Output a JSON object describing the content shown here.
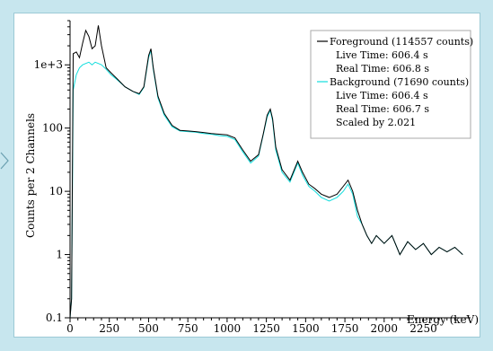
{
  "chart_data": {
    "type": "line",
    "xlabel": "Energy (keV)",
    "ylabel": "Counts per 2 Channels",
    "xlim": [
      0,
      2550
    ],
    "ylim": [
      0.1,
      5000
    ],
    "yscale": "log",
    "xticks": [
      0,
      250,
      500,
      750,
      1000,
      1250,
      1500,
      1750,
      2000,
      2250
    ],
    "yticks": [
      {
        "v": 0.1,
        "label": "0.1"
      },
      {
        "v": 1,
        "label": "1"
      },
      {
        "v": 10,
        "label": "10"
      },
      {
        "v": 100,
        "label": "100"
      },
      {
        "v": 1000,
        "label": "1e+3"
      }
    ],
    "series": [
      {
        "name": "Foreground (114557 counts)",
        "color": "#000000",
        "points": [
          [
            0,
            0.1
          ],
          [
            10,
            0.2
          ],
          [
            20,
            1500
          ],
          [
            40,
            1600
          ],
          [
            60,
            1300
          ],
          [
            80,
            2200
          ],
          [
            100,
            3500
          ],
          [
            120,
            2800
          ],
          [
            140,
            1800
          ],
          [
            160,
            2000
          ],
          [
            180,
            4200
          ],
          [
            200,
            2000
          ],
          [
            230,
            900
          ],
          [
            260,
            750
          ],
          [
            300,
            600
          ],
          [
            350,
            450
          ],
          [
            400,
            380
          ],
          [
            440,
            350
          ],
          [
            470,
            450
          ],
          [
            500,
            1400
          ],
          [
            515,
            1800
          ],
          [
            530,
            900
          ],
          [
            560,
            320
          ],
          [
            600,
            170
          ],
          [
            650,
            110
          ],
          [
            700,
            92
          ],
          [
            750,
            90
          ],
          [
            800,
            88
          ],
          [
            850,
            85
          ],
          [
            900,
            82
          ],
          [
            950,
            80
          ],
          [
            1000,
            78
          ],
          [
            1050,
            70
          ],
          [
            1100,
            45
          ],
          [
            1150,
            30
          ],
          [
            1200,
            38
          ],
          [
            1230,
            80
          ],
          [
            1255,
            160
          ],
          [
            1275,
            200
          ],
          [
            1290,
            140
          ],
          [
            1310,
            50
          ],
          [
            1350,
            22
          ],
          [
            1400,
            15
          ],
          [
            1450,
            30
          ],
          [
            1480,
            20
          ],
          [
            1520,
            13
          ],
          [
            1560,
            11
          ],
          [
            1600,
            9
          ],
          [
            1650,
            8
          ],
          [
            1700,
            9
          ],
          [
            1740,
            12
          ],
          [
            1770,
            15
          ],
          [
            1800,
            10
          ],
          [
            1830,
            5
          ],
          [
            1860,
            3
          ],
          [
            1890,
            2
          ],
          [
            1920,
            1.5
          ],
          [
            1950,
            2
          ],
          [
            2000,
            1.5
          ],
          [
            2050,
            2
          ],
          [
            2100,
            1
          ],
          [
            2150,
            1.6
          ],
          [
            2200,
            1.2
          ],
          [
            2250,
            1.5
          ],
          [
            2300,
            1
          ],
          [
            2350,
            1.3
          ],
          [
            2400,
            1.1
          ],
          [
            2450,
            1.3
          ],
          [
            2500,
            1
          ]
        ]
      },
      {
        "name": "Background (71690 counts)",
        "color": "#11dddd",
        "points": [
          [
            0,
            0.1
          ],
          [
            10,
            0.2
          ],
          [
            20,
            400
          ],
          [
            40,
            700
          ],
          [
            60,
            900
          ],
          [
            80,
            1000
          ],
          [
            100,
            1050
          ],
          [
            120,
            1100
          ],
          [
            140,
            1000
          ],
          [
            160,
            1100
          ],
          [
            180,
            1050
          ],
          [
            200,
            1000
          ],
          [
            230,
            850
          ],
          [
            260,
            700
          ],
          [
            300,
            580
          ],
          [
            350,
            450
          ],
          [
            400,
            380
          ],
          [
            440,
            340
          ],
          [
            470,
            440
          ],
          [
            500,
            1300
          ],
          [
            515,
            1700
          ],
          [
            530,
            850
          ],
          [
            560,
            300
          ],
          [
            600,
            160
          ],
          [
            650,
            105
          ],
          [
            700,
            90
          ],
          [
            750,
            88
          ],
          [
            800,
            86
          ],
          [
            850,
            82
          ],
          [
            900,
            80
          ],
          [
            950,
            76
          ],
          [
            1000,
            74
          ],
          [
            1050,
            66
          ],
          [
            1100,
            42
          ],
          [
            1150,
            28
          ],
          [
            1200,
            36
          ],
          [
            1230,
            78
          ],
          [
            1255,
            150
          ],
          [
            1275,
            190
          ],
          [
            1290,
            130
          ],
          [
            1310,
            45
          ],
          [
            1350,
            20
          ],
          [
            1400,
            14
          ],
          [
            1450,
            28
          ],
          [
            1480,
            18
          ],
          [
            1520,
            12
          ],
          [
            1560,
            10
          ],
          [
            1600,
            8
          ],
          [
            1650,
            7
          ],
          [
            1700,
            8
          ],
          [
            1740,
            10
          ],
          [
            1770,
            13
          ],
          [
            1800,
            9
          ],
          [
            1830,
            4
          ],
          [
            1860,
            3
          ],
          [
            1890,
            2
          ],
          [
            1920,
            1.5
          ],
          [
            1950,
            2
          ],
          [
            2000,
            1.5
          ],
          [
            2050,
            2
          ],
          [
            2100,
            1
          ],
          [
            2150,
            1.6
          ],
          [
            2200,
            1.2
          ],
          [
            2250,
            1.5
          ],
          [
            2300,
            1
          ],
          [
            2350,
            1.3
          ],
          [
            2400,
            1.1
          ],
          [
            2450,
            1.3
          ],
          [
            2500,
            1
          ]
        ]
      }
    ],
    "legend_position": "top-right",
    "legend": {
      "foreground_title": "Foreground (114557 counts)",
      "foreground_live": "Live Time: 606.4 s",
      "foreground_real": "Real Time: 606.8 s",
      "background_title": "Background (71690 counts)",
      "background_live": "Live Time: 606.4 s",
      "background_real": "Real Time: 606.7 s",
      "background_scale": "Scaled by 2.021"
    }
  }
}
